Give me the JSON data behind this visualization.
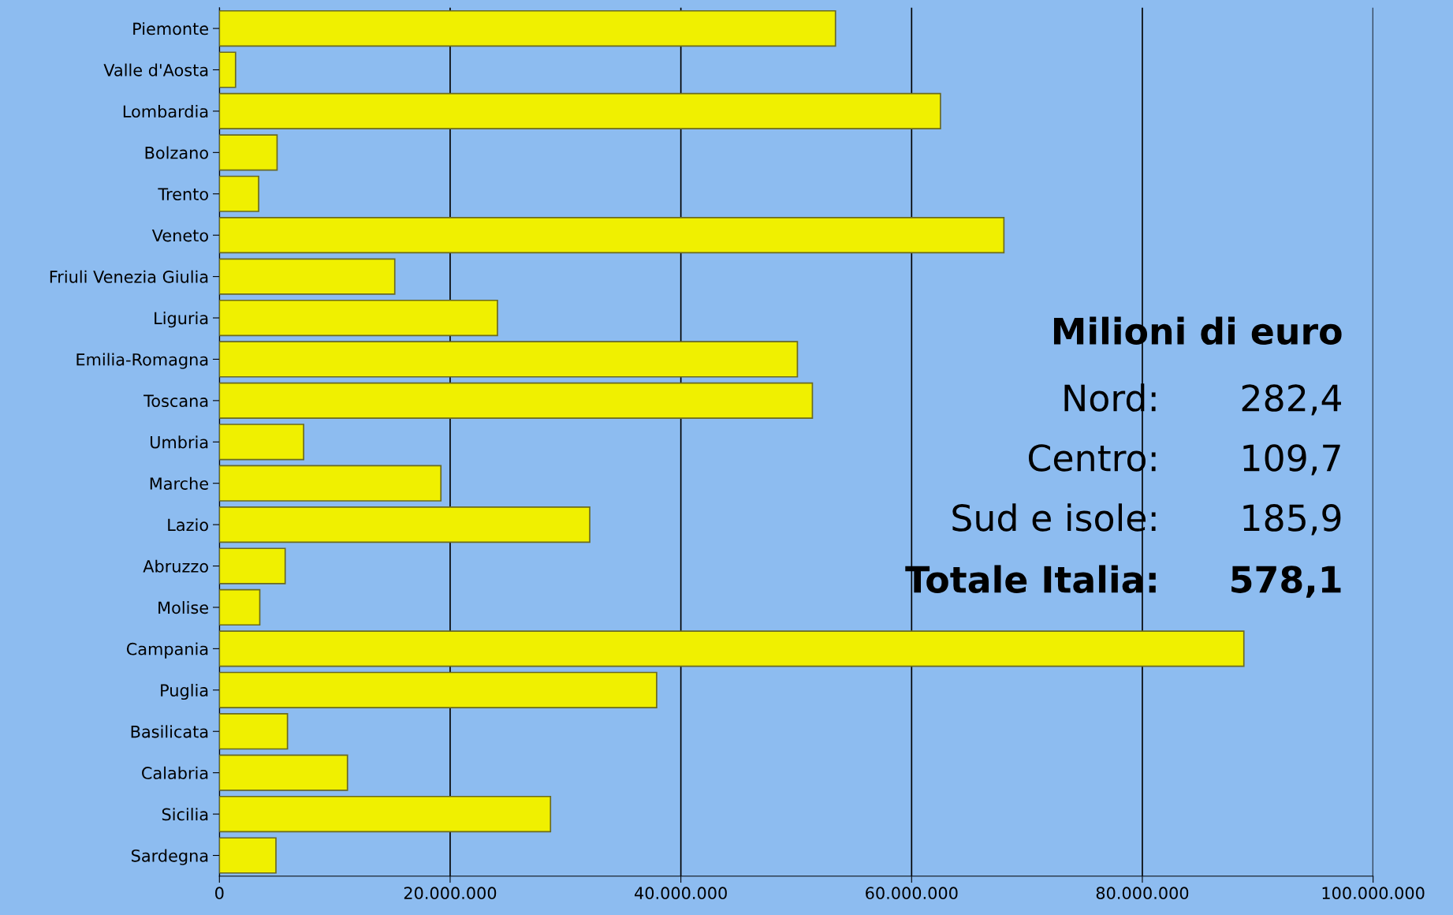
{
  "chart_data": {
    "type": "bar",
    "orientation": "horizontal",
    "categories": [
      "Piemonte",
      "Valle d'Aosta",
      "Lombardia",
      "Bolzano",
      "Trento",
      "Veneto",
      "Friuli Venezia Giulia",
      "Liguria",
      "Emilia-Romagna",
      "Toscana",
      "Umbria",
      "Marche",
      "Lazio",
      "Abruzzo",
      "Molise",
      "Campania",
      "Puglia",
      "Basilicata",
      "Calabria",
      "Sicilia",
      "Sardegna"
    ],
    "values": [
      53400000,
      1400000,
      62500000,
      5000000,
      3400000,
      68000000,
      15200000,
      24100000,
      50100000,
      51400000,
      7300000,
      19200000,
      32100000,
      5700000,
      3500000,
      88800000,
      37900000,
      5900000,
      11100000,
      28700000,
      4900000
    ],
    "color": "#f0f000",
    "xlim": [
      0,
      100000000
    ],
    "xticks": [
      0,
      {
        "value": 20000000,
        "label": "20.000.000"
      },
      {
        "value": 40000000,
        "label": "40.000.000"
      },
      {
        "value": 60000000,
        "label": "60.000.000"
      },
      {
        "value": 80000000,
        "label": "80.000.000"
      },
      {
        "value": 100000000,
        "label": "100.000.000"
      }
    ],
    "grid": "x",
    "annotations": [
      "Milioni di euro",
      "Nord:",
      "282,4",
      "Centro:",
      "109,7",
      "Sud e isole:",
      "185,9",
      "Totale Italia:",
      "578,1"
    ]
  }
}
